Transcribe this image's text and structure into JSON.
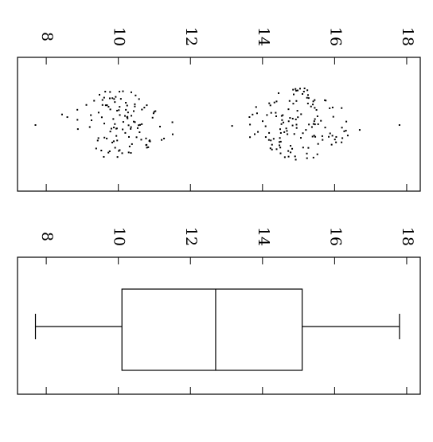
{
  "chart_data": [
    {
      "type": "scatter",
      "title": "",
      "xlabel": "",
      "ylabel": "",
      "orientation": "rotated-90-clockwise",
      "value_axis_range": [
        7.6,
        18.2
      ],
      "ticks": [
        8,
        10,
        12,
        14,
        16,
        18
      ],
      "tick_labels": [
        "8",
        "10",
        "12",
        "14",
        "16",
        "18"
      ],
      "description_of_distribution": "bimodal jittered strip of ~250 points, clusters near 10 and 15",
      "cluster_summary": [
        {
          "center": 10.0,
          "spread": 1.0,
          "count": 115
        },
        {
          "center": 15.0,
          "spread": 1.1,
          "count": 135
        }
      ],
      "value_min": 7.7,
      "value_max": 17.8,
      "seed": 7
    },
    {
      "type": "boxplot",
      "title": "",
      "xlabel": "",
      "ylabel": "",
      "orientation": "rotated-90-clockwise",
      "value_axis_range": [
        7.6,
        18.2
      ],
      "ticks": [
        8,
        10,
        12,
        14,
        16,
        18
      ],
      "tick_labels": [
        "8",
        "10",
        "12",
        "14",
        "16",
        "18"
      ],
      "stats": {
        "min": 7.7,
        "q1": 10.1,
        "median": 12.7,
        "q3": 15.1,
        "max": 17.8
      }
    }
  ]
}
